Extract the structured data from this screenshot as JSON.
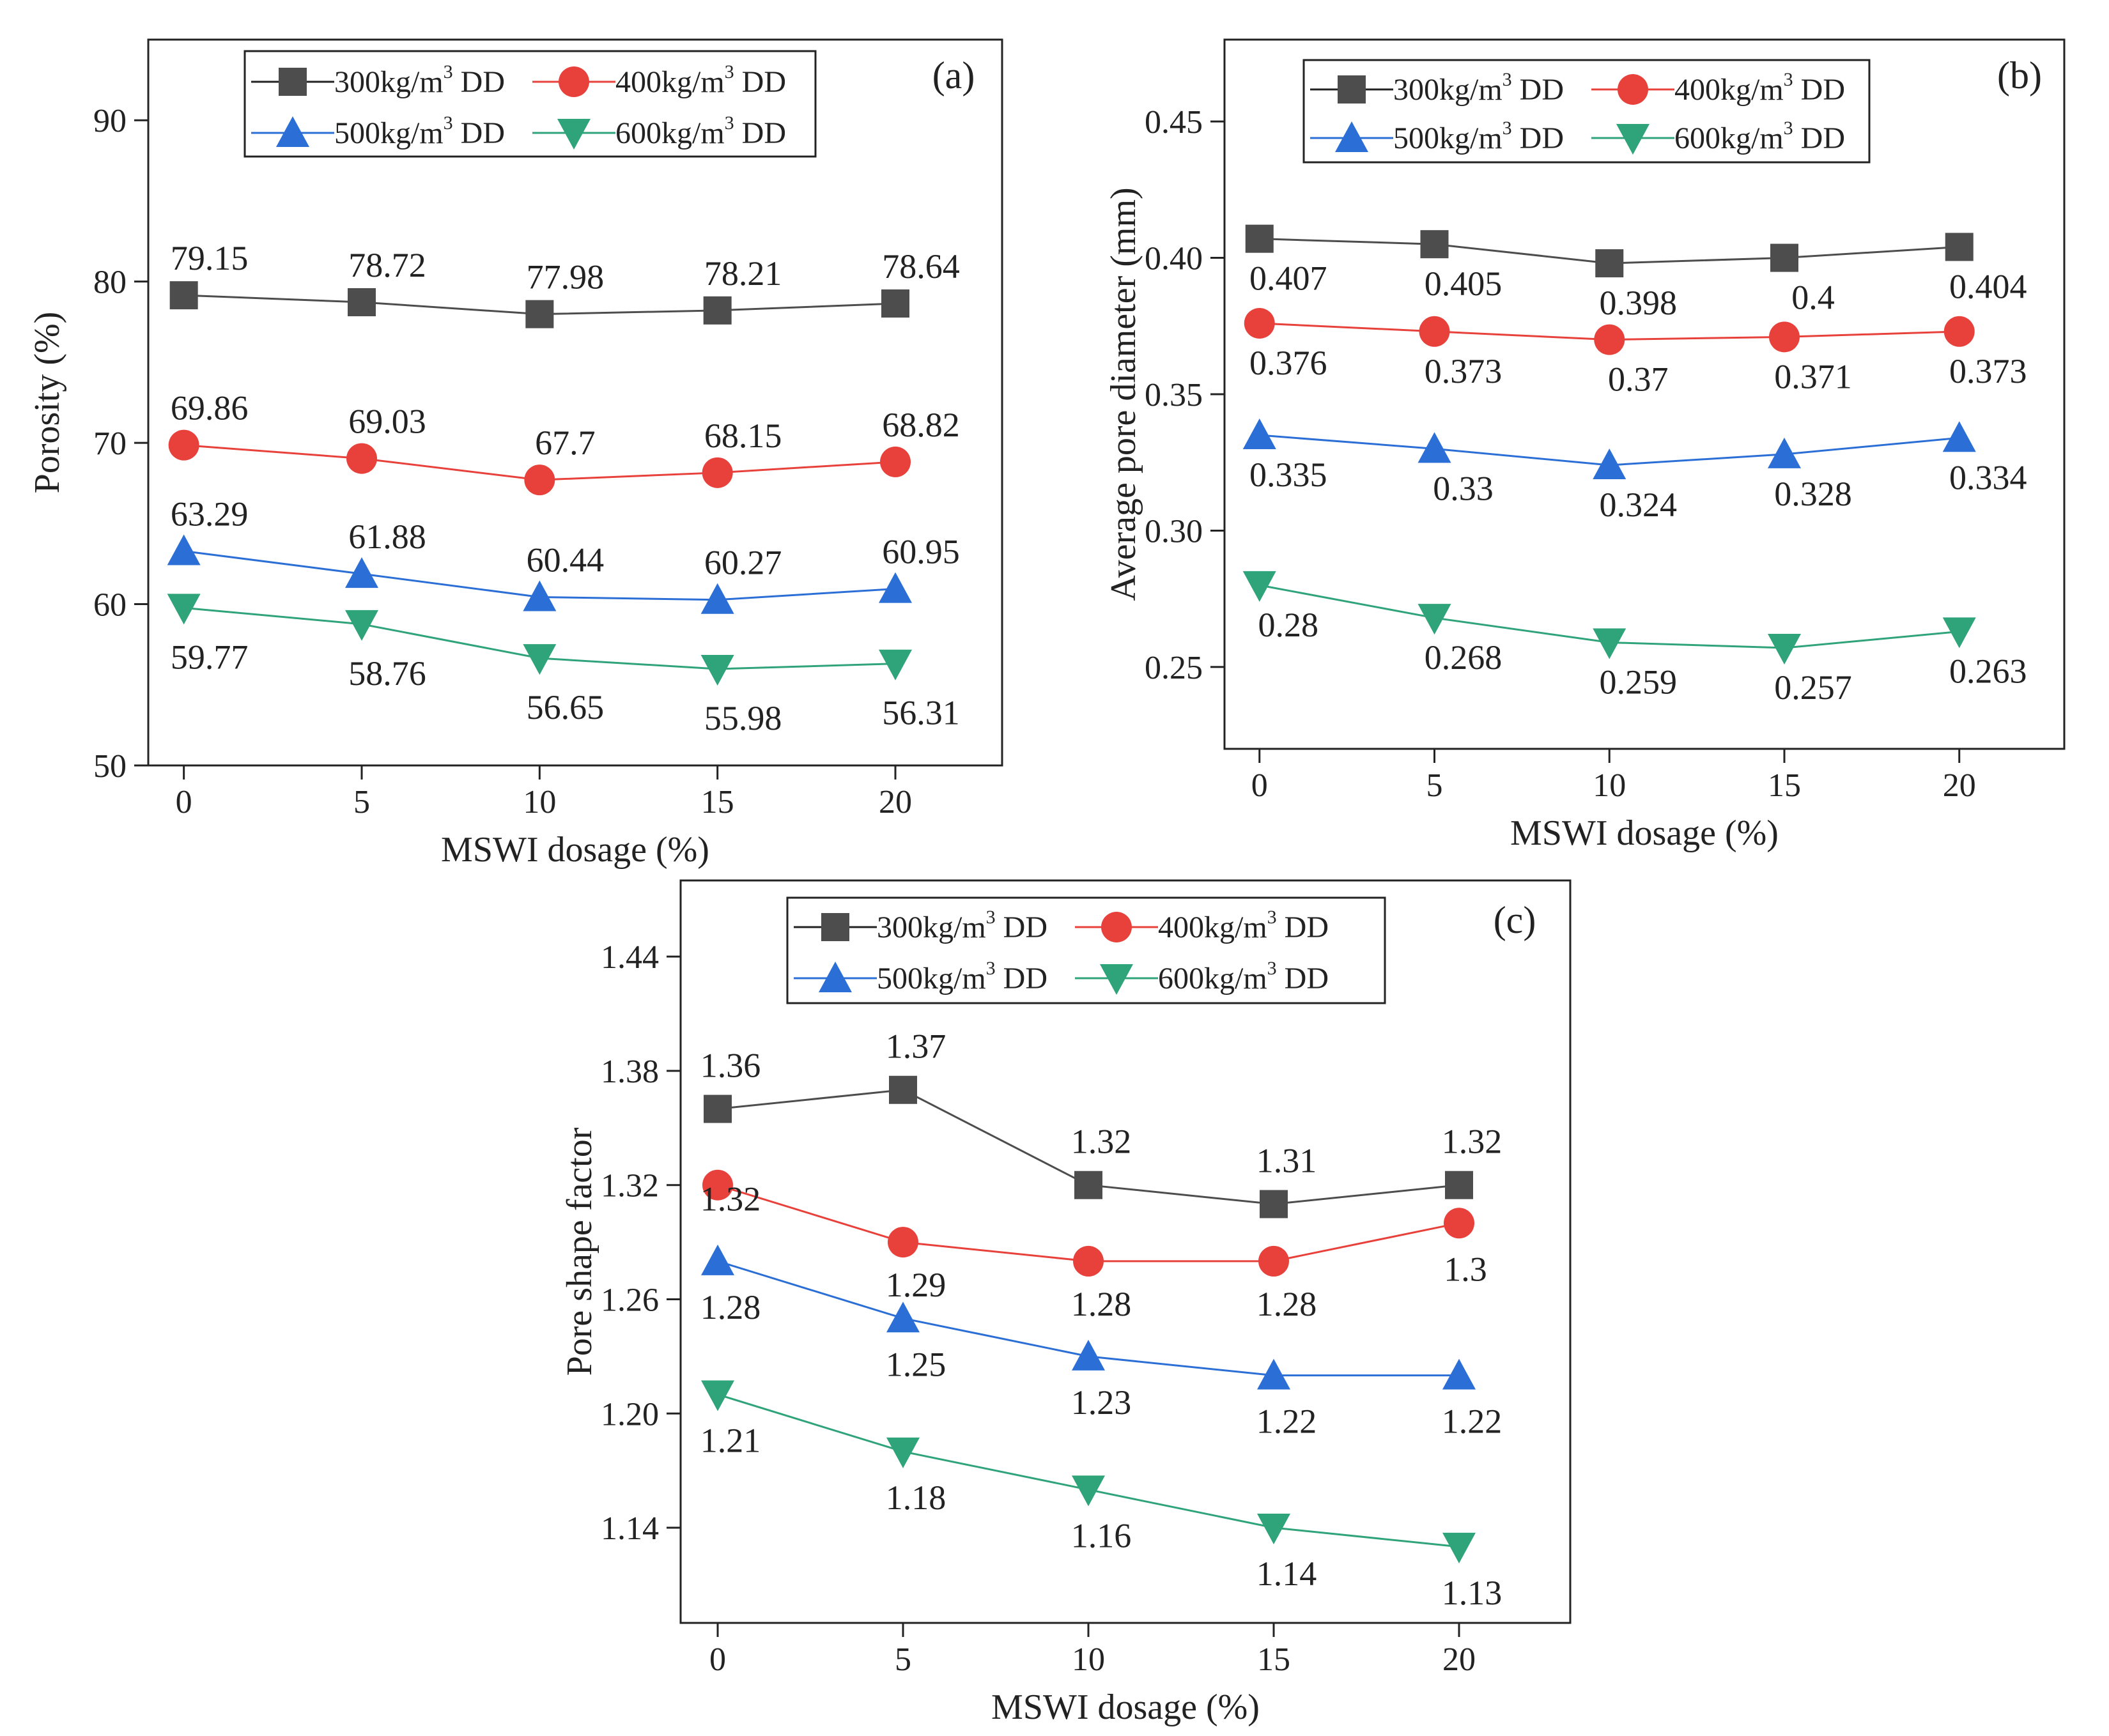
{
  "chart_data": [
    {
      "type": "line",
      "panel_label": "(a)",
      "xlabel": "MSWI dosage (%)",
      "ylabel": "Porosity (%)",
      "x": [
        0,
        5,
        10,
        15,
        20
      ],
      "xlim": [
        -1,
        23
      ],
      "ylim": [
        50,
        95
      ],
      "yticks": [
        50,
        60,
        70,
        80,
        90
      ],
      "ytick_labels": [
        "50",
        "60",
        "70",
        "80",
        "90"
      ],
      "xtick_labels": [
        "0",
        "5",
        "10",
        "15",
        "20"
      ],
      "legend_position": "top-center",
      "series": [
        {
          "name": "300kg/m³ DD",
          "unit_base": "300kg/m",
          "unit_sup": "3",
          "unit_suffix": " DD",
          "color": "#4d4d4d",
          "marker": "square",
          "values": [
            79.15,
            78.72,
            77.98,
            78.21,
            78.64
          ],
          "labels": [
            "79.15",
            "78.72",
            "77.98",
            "78.21",
            "78.64"
          ]
        },
        {
          "name": "400kg/m³ DD",
          "unit_base": "400kg/m",
          "unit_sup": "3",
          "unit_suffix": " DD",
          "color": "#e8413b",
          "marker": "circle",
          "values": [
            69.86,
            69.03,
            67.7,
            68.15,
            68.82
          ],
          "labels": [
            "69.86",
            "69.03",
            "67.7",
            "68.15",
            "68.82"
          ]
        },
        {
          "name": "500kg/m³ DD",
          "unit_base": "500kg/m",
          "unit_sup": "3",
          "unit_suffix": " DD",
          "color": "#2b6fd6",
          "marker": "triangle-up",
          "values": [
            63.29,
            61.88,
            60.44,
            60.27,
            60.95
          ],
          "labels": [
            "63.29",
            "61.88",
            "60.44",
            "60.27",
            "60.95"
          ]
        },
        {
          "name": "600kg/m³ DD",
          "unit_base": "600kg/m",
          "unit_sup": "3",
          "unit_suffix": " DD",
          "color": "#2fa37a",
          "marker": "triangle-down",
          "values": [
            59.77,
            58.76,
            56.65,
            55.98,
            56.31
          ],
          "labels": [
            "59.77",
            "58.76",
            "56.65",
            "55.98",
            "56.31"
          ]
        }
      ]
    },
    {
      "type": "line",
      "panel_label": "(b)",
      "xlabel": "MSWI dosage (%)",
      "ylabel": "Average pore diameter (mm)",
      "x": [
        0,
        5,
        10,
        15,
        20
      ],
      "xlim": [
        -1,
        23
      ],
      "ylim": [
        0.22,
        0.48
      ],
      "yticks": [
        0.25,
        0.3,
        0.35,
        0.4,
        0.45
      ],
      "ytick_labels": [
        "0.25",
        "0.30",
        "0.35",
        "0.40",
        "0.45"
      ],
      "xtick_labels": [
        "0",
        "5",
        "10",
        "15",
        "20"
      ],
      "legend_position": "top-center",
      "series": [
        {
          "name": "300kg/m³ DD",
          "unit_base": "300kg/m",
          "unit_sup": "3",
          "unit_suffix": " DD",
          "color": "#4d4d4d",
          "marker": "square",
          "values": [
            0.407,
            0.405,
            0.398,
            0.4,
            0.404
          ],
          "labels": [
            "0.407",
            "0.405",
            "0.398",
            "0.4",
            "0.404"
          ]
        },
        {
          "name": "400kg/m³ DD",
          "unit_base": "400kg/m",
          "unit_sup": "3",
          "unit_suffix": " DD",
          "color": "#e8413b",
          "marker": "circle",
          "values": [
            0.376,
            0.373,
            0.37,
            0.371,
            0.373
          ],
          "labels": [
            "0.376",
            "0.373",
            "0.37",
            "0.371",
            "0.373"
          ]
        },
        {
          "name": "500kg/m³ DD",
          "unit_base": "500kg/m",
          "unit_sup": "3",
          "unit_suffix": " DD",
          "color": "#2b6fd6",
          "marker": "triangle-up",
          "values": [
            0.335,
            0.33,
            0.324,
            0.328,
            0.334
          ],
          "labels": [
            "0.335",
            "0.33",
            "0.324",
            "0.328",
            "0.334"
          ]
        },
        {
          "name": "600kg/m³ DD",
          "unit_base": "600kg/m",
          "unit_sup": "3",
          "unit_suffix": " DD",
          "color": "#2fa37a",
          "marker": "triangle-down",
          "values": [
            0.28,
            0.268,
            0.259,
            0.257,
            0.263
          ],
          "labels": [
            "0.28",
            "0.268",
            "0.259",
            "0.257",
            "0.263"
          ]
        }
      ]
    },
    {
      "type": "line",
      "panel_label": "(c)",
      "xlabel": "MSWI dosage (%)",
      "ylabel": "Pore shape factor",
      "x": [
        0,
        5,
        10,
        15,
        20
      ],
      "xlim": [
        -1,
        23
      ],
      "ylim": [
        1.09,
        1.48
      ],
      "yticks": [
        1.14,
        1.2,
        1.26,
        1.32,
        1.38,
        1.44
      ],
      "ytick_labels": [
        "1.14",
        "1.20",
        "1.26",
        "1.32",
        "1.38",
        "1.44"
      ],
      "xtick_labels": [
        "0",
        "5",
        "10",
        "15",
        "20"
      ],
      "legend_position": "top-center",
      "series": [
        {
          "name": "300kg/m³ DD",
          "unit_base": "300kg/m",
          "unit_sup": "3",
          "unit_suffix": " DD",
          "color": "#4d4d4d",
          "marker": "square",
          "values": [
            1.36,
            1.37,
            1.32,
            1.31,
            1.32
          ],
          "labels": [
            "1.36",
            "1.37",
            "1.32",
            "1.31",
            "1.32"
          ]
        },
        {
          "name": "400kg/m³ DD",
          "unit_base": "400kg/m",
          "unit_sup": "3",
          "unit_suffix": " DD",
          "color": "#e8413b",
          "marker": "circle",
          "values": [
            1.32,
            1.29,
            1.28,
            1.28,
            1.3
          ],
          "labels": [
            "1.32",
            "1.29",
            "1.28",
            "1.28",
            "1.3"
          ]
        },
        {
          "name": "500kg/m³ DD",
          "unit_base": "500kg/m",
          "unit_sup": "3",
          "unit_suffix": " DD",
          "color": "#2b6fd6",
          "marker": "triangle-up",
          "values": [
            1.28,
            1.25,
            1.23,
            1.22,
            1.22
          ],
          "labels": [
            "1.28",
            "1.25",
            "1.23",
            "1.22",
            "1.22"
          ]
        },
        {
          "name": "600kg/m³ DD",
          "unit_base": "600kg/m",
          "unit_sup": "3",
          "unit_suffix": " DD",
          "color": "#2fa37a",
          "marker": "triangle-down",
          "values": [
            1.21,
            1.18,
            1.16,
            1.14,
            1.13
          ],
          "labels": [
            "1.21",
            "1.18",
            "1.16",
            "1.14",
            "1.13"
          ]
        }
      ]
    }
  ]
}
